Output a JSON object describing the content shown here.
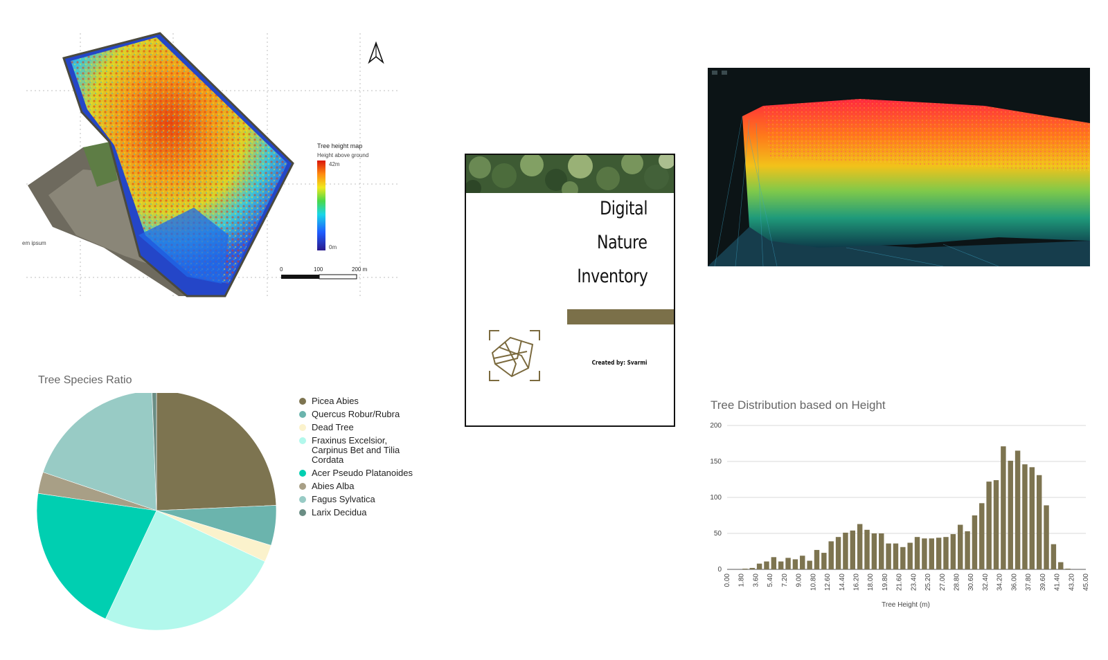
{
  "map": {
    "legend_title": "Tree height map",
    "legend_subtitle": "Height above ground",
    "legend_max": "42m",
    "legend_min": "0m",
    "scale_labels": [
      "0",
      "100",
      "200 m"
    ],
    "side_text": "em ipsum",
    "north_icon": "north-arrow-icon"
  },
  "cover": {
    "title_lines": [
      "Digital",
      "Nature",
      "Inventory"
    ],
    "credit": "Created by: Svarmi",
    "band_color": "#7b7049",
    "logo_icon": "mesh-logo-icon"
  },
  "chart_data": [
    {
      "type": "pie",
      "title": "Tree Species Ratio",
      "labels": [
        "Picea Abies",
        "Quercus Robur/Rubra",
        "Dead Tree",
        "Fraxinus Excelsior, Carpinus Bet and Tilia Cordata",
        "Acer Pseudo Platanoides",
        "Abies Alba",
        "Fagus Sylvatica",
        "Larix Decidua"
      ],
      "values": [
        24.3,
        5.4,
        2.3,
        25.0,
        20.3,
        2.9,
        19.2,
        0.6
      ],
      "colors": [
        "#7d7450",
        "#6bb4ad",
        "#fbf2cc",
        "#b2f8ec",
        "#00cfb1",
        "#a89f86",
        "#98cbc5",
        "#6a8d84"
      ],
      "legend": "right"
    },
    {
      "type": "bar",
      "title": "Tree Distribution based on Height",
      "xlabel": "Tree Height (m)",
      "ylabel": "",
      "ylim": [
        0,
        200
      ],
      "yticks": [
        0,
        50,
        100,
        150,
        200
      ],
      "xlim": [
        0,
        45
      ],
      "x_tick_labels": [
        "0.00",
        "1.80",
        "3.60",
        "5.40",
        "7.20",
        "9.00",
        "10.80",
        "12.60",
        "14.40",
        "16.20",
        "18.00",
        "19.80",
        "21.60",
        "23.40",
        "25.20",
        "27.00",
        "28.80",
        "30.60",
        "32.40",
        "34.20",
        "36.00",
        "37.80",
        "39.60",
        "41.40",
        "43.20",
        "45.00"
      ],
      "bin_width": 0.9,
      "x": [
        0.0,
        0.9,
        1.8,
        2.7,
        3.6,
        4.5,
        5.4,
        6.3,
        7.2,
        8.1,
        9.0,
        9.9,
        10.8,
        11.7,
        12.6,
        13.5,
        14.4,
        15.3,
        16.2,
        17.1,
        18.0,
        18.9,
        19.8,
        20.7,
        21.6,
        22.5,
        23.4,
        24.3,
        25.2,
        26.1,
        27.0,
        27.9,
        28.8,
        29.7,
        30.6,
        31.5,
        32.4,
        33.3,
        34.2,
        35.1,
        36.0,
        36.9,
        37.8,
        38.7,
        39.6,
        40.5,
        41.4,
        42.3,
        43.2,
        44.1
      ],
      "values": [
        0,
        0,
        1,
        2,
        8,
        11,
        17,
        11,
        16,
        14,
        19,
        12,
        27,
        23,
        39,
        45,
        51,
        54,
        63,
        55,
        50,
        50,
        36,
        36,
        31,
        37,
        45,
        43,
        43,
        44,
        45,
        49,
        62,
        53,
        75,
        92,
        122,
        124,
        171,
        151,
        165,
        146,
        142,
        131,
        89,
        35,
        10,
        1,
        0,
        0
      ],
      "color": "#7d7450",
      "grid": true
    }
  ]
}
